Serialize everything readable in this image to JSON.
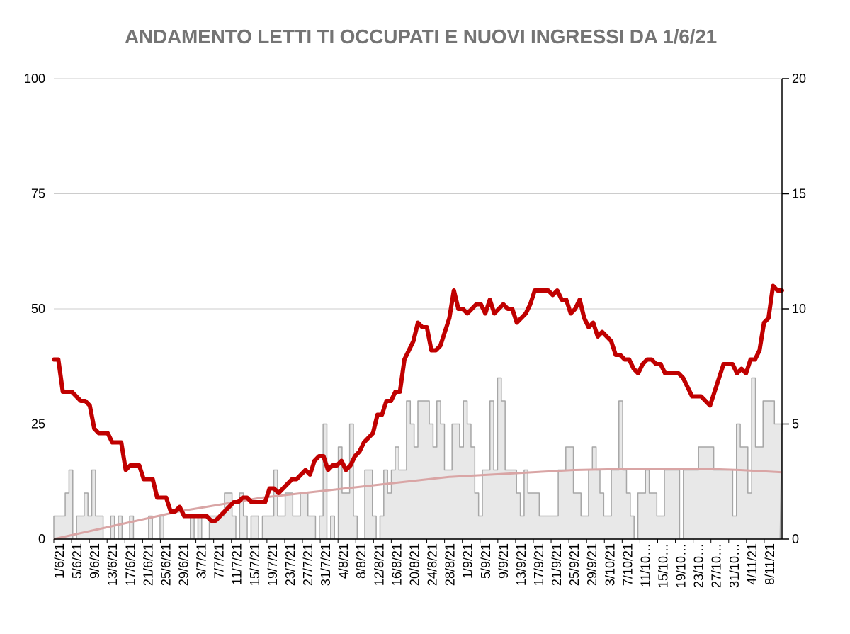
{
  "chart_data": {
    "type": "line",
    "title": "ANDAMENTO LETTI TI OCCUPATI E NUOVI INGRESSI DA 1/6/21",
    "y_left": {
      "ylim": [
        0,
        100
      ],
      "ticks": [
        "0",
        "25",
        "50",
        "75",
        "100"
      ]
    },
    "y_right": {
      "ylim": [
        0,
        20
      ],
      "ticks": [
        "0",
        "5",
        "10",
        "15",
        "20"
      ]
    },
    "x_tick_labels": [
      "1/6/21",
      "5/6/21",
      "9/6/21",
      "13/6/21",
      "17/6/21",
      "21/6/21",
      "25/6/21",
      "29/6/21",
      "3/7/21",
      "7/7/21",
      "11/7/21",
      "15/7/21",
      "19/7/21",
      "23/7/21",
      "27/7/21",
      "31/7/21",
      "4/8/21",
      "8/8/21",
      "12/8/21",
      "16/8/21",
      "20/8/21",
      "24/8/21",
      "28/8/21",
      "1/9/21",
      "5/9/21",
      "9/9/21",
      "13/9/21",
      "17/9/21",
      "21/9/21",
      "25/9/21",
      "29/9/21",
      "3/10/21",
      "7/10/21",
      "11/10…",
      "15/10…",
      "19/10…",
      "23/10…",
      "27/10…",
      "31/10…",
      "4/11/21",
      "8/11/21"
    ],
    "grid": true,
    "legend": "none",
    "colors": {
      "occupied": "#c00000",
      "admissions_fill": "#e8e8e8",
      "admissions_stroke": "#a6a6a6",
      "trend": "#d9a5a5",
      "grid": "#cccccc",
      "title": "#747474"
    },
    "series": [
      {
        "type": "line",
        "axis": "left",
        "values": [
          39,
          39,
          32,
          32,
          32,
          31,
          30,
          30,
          29,
          24,
          23,
          23,
          23,
          21,
          21,
          21,
          15,
          16,
          16,
          16,
          13,
          13,
          13,
          9,
          9,
          9,
          6,
          6,
          7,
          5,
          5,
          5,
          5,
          5,
          5,
          4,
          4,
          5,
          6,
          7,
          8,
          8,
          9,
          9,
          8,
          8,
          8,
          8,
          11,
          11,
          10,
          11,
          12,
          13,
          13,
          14,
          15,
          14,
          17,
          18,
          18,
          15,
          16,
          16,
          17,
          15,
          16,
          18,
          19,
          21,
          22,
          23,
          27,
          27,
          30,
          30,
          32,
          32,
          39,
          41,
          43,
          47,
          46,
          46,
          41,
          41,
          42,
          45,
          48,
          54,
          50,
          50,
          49,
          50,
          51,
          51,
          49,
          52,
          49,
          50,
          51,
          50,
          50,
          47,
          48,
          49,
          51,
          54,
          54,
          54,
          54,
          53,
          54,
          52,
          52,
          49,
          50,
          52,
          48,
          46,
          47,
          44,
          45,
          44,
          43,
          40,
          40,
          39,
          39,
          37,
          36,
          38,
          39,
          39,
          38,
          38,
          36,
          36,
          36,
          36,
          35,
          33,
          31,
          31,
          31,
          30,
          29,
          32,
          35,
          38,
          38,
          38,
          36,
          37,
          36,
          39,
          39,
          41,
          47,
          48,
          55,
          54,
          54
        ]
      },
      {
        "type": "area",
        "axis": "right",
        "values": [
          1,
          1,
          1,
          2,
          3,
          0,
          1,
          1,
          2,
          1,
          3,
          1,
          1,
          0,
          0,
          1,
          0,
          1,
          0,
          0,
          1,
          0,
          0,
          0,
          0,
          1,
          0,
          0,
          1,
          0,
          0,
          0,
          0,
          0,
          0,
          0,
          1,
          0,
          1,
          0,
          0,
          1,
          1,
          1,
          1,
          2,
          2,
          1,
          0,
          2,
          1,
          0,
          1,
          1,
          0,
          1,
          1,
          1,
          3,
          1,
          1,
          2,
          2,
          1,
          1,
          2,
          2,
          1,
          1,
          0,
          1,
          5,
          0,
          1,
          0,
          4,
          2,
          2,
          5,
          1,
          0,
          0,
          3,
          3,
          1,
          0,
          1,
          3,
          2,
          3,
          4,
          3,
          3,
          6,
          5,
          4,
          6,
          6,
          6,
          5,
          4,
          6,
          5,
          3,
          3,
          5,
          5,
          4,
          6,
          5,
          4,
          2,
          1,
          3,
          3,
          6,
          3,
          7,
          6,
          3,
          3,
          3,
          2,
          1,
          3,
          2,
          2,
          2,
          1,
          1,
          1,
          1,
          1,
          3,
          3,
          4,
          4,
          2,
          2,
          1,
          1,
          3,
          4,
          3,
          2,
          1,
          1,
          3,
          3,
          6,
          3,
          2,
          1,
          0,
          2,
          2,
          3,
          2,
          2,
          1,
          1,
          3,
          3,
          3,
          3,
          0,
          3,
          3,
          3,
          3,
          4,
          4,
          4,
          4,
          3,
          3,
          3,
          3,
          3,
          1,
          5,
          4,
          4,
          2,
          7,
          4,
          4,
          6,
          6,
          6,
          5,
          5
        ]
      },
      {
        "type": "line",
        "axis": "right",
        "description_of": "trend",
        "values": [
          0,
          0.2,
          0.4,
          0.6,
          0.8,
          1.0,
          1.2,
          1.35,
          1.5,
          1.65,
          1.8,
          1.9,
          2.0,
          2.1,
          2.2,
          2.3,
          2.4,
          2.5,
          2.6,
          2.7,
          2.75,
          2.8,
          2.85,
          2.9,
          2.95,
          3.0,
          3.02,
          3.04,
          3.05,
          3.06,
          3.06,
          3.05,
          3.03,
          3.0,
          2.95,
          2.9
        ]
      }
    ]
  }
}
